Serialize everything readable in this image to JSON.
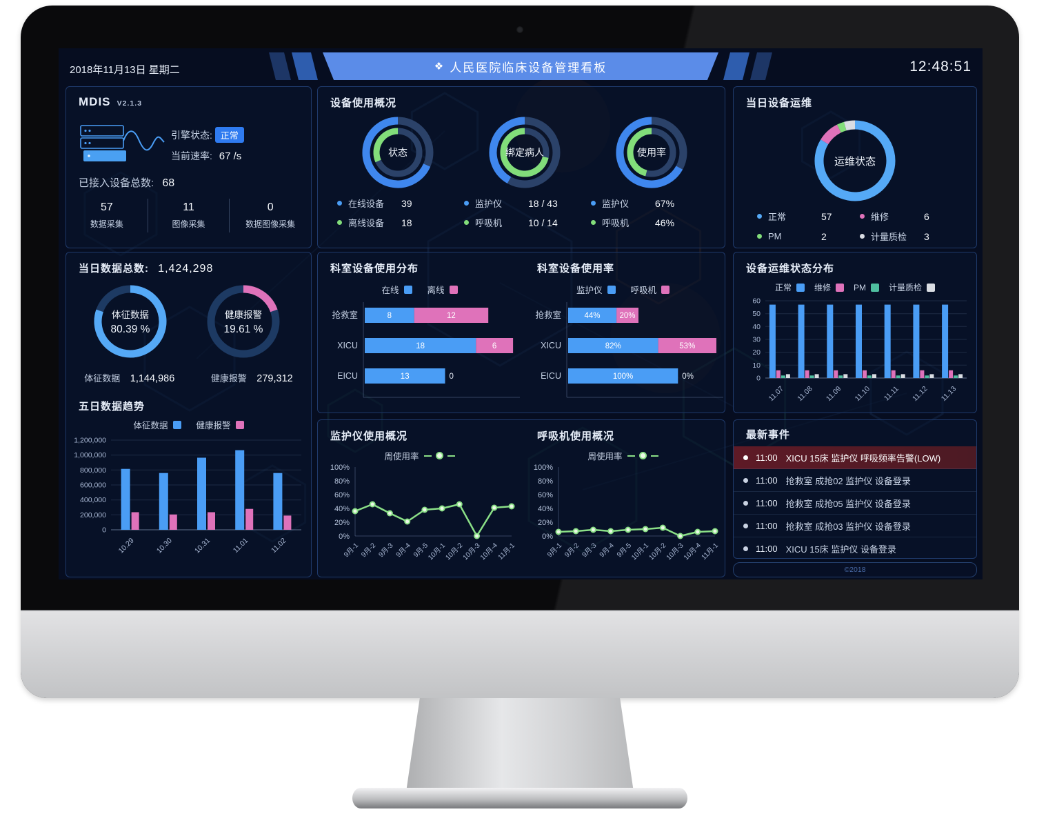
{
  "header": {
    "date": "2018年11月13日 星期二",
    "title": "人民医院临床设备管理看板",
    "time": "12:48:51"
  },
  "colors": {
    "blue": "#4a9df5",
    "donut_blue": "#3f87ee",
    "light_blue": "#55a9f6",
    "green": "#82dd7a",
    "pink": "#df72ba",
    "teal": "#4fbfa0",
    "white_series": "#d9dde3",
    "slate_track": "#2b4269",
    "navy_track": "#1d3a63",
    "banner": "#5b8ce8",
    "badge": "#2f7bf0",
    "alert_bg": "#571c28"
  },
  "mdis": {
    "title": "MDIS",
    "version": "V2.1.3",
    "engine_label": "引擎状态:",
    "engine_status": "正常",
    "rate_label": "当前速率:",
    "rate_value": "67 /s",
    "total_label": "已接入设备总数:",
    "total_value": "68",
    "stats": [
      {
        "value": "57",
        "label": "数据采集"
      },
      {
        "value": "11",
        "label": "图像采集"
      },
      {
        "value": "0",
        "label": "数据图像采集"
      }
    ]
  },
  "overview": {
    "title": "设备使用概况",
    "donuts": [
      {
        "legend": [
          {
            "label": "在线设备",
            "value": "39"
          },
          {
            "label": "离线设备",
            "value": "18"
          }
        ]
      },
      {
        "legend": [
          {
            "label": "监护仪",
            "value": "18 / 43"
          },
          {
            "label": "呼吸机",
            "value": "10 / 14"
          }
        ]
      },
      {
        "legend": [
          {
            "label": "监护仪",
            "value": "67%"
          },
          {
            "label": "呼吸机",
            "value": "46%"
          }
        ]
      }
    ]
  },
  "ops": {
    "title": "当日设备运维"
  },
  "daily": {
    "total_label": "当日数据总数:",
    "total_value": "1,424,298",
    "trend_title": "五日数据趋势",
    "stats": [
      {
        "label": "体征数据",
        "value": "1,144,986"
      },
      {
        "label": "健康报警",
        "value": "279,312"
      }
    ]
  },
  "panels": {
    "dept_dist": "科室设备使用分布",
    "dept_usage": "科室设备使用率",
    "ops_dist": "设备运维状态分布",
    "monitor": "监护仪使用概况",
    "vent": "呼吸机使用概况"
  },
  "events": {
    "title": "最新事件",
    "footer": "©2018",
    "items": [
      {
        "time": "11:00",
        "text": "XICU 15床 监护仪 呼吸频率告警(LOW)",
        "alert": true
      },
      {
        "time": "11:00",
        "text": "抢救室 成抢02 监护仪 设备登录",
        "alert": false
      },
      {
        "time": "11:00",
        "text": "抢救室 成抢05 监护仪 设备登录",
        "alert": false
      },
      {
        "time": "11:00",
        "text": "抢救室 成抢03 监护仪 设备登录",
        "alert": false
      },
      {
        "time": "11:00",
        "text": "XICU 15床 监护仪 设备登录",
        "alert": false
      }
    ]
  },
  "chart_data": [
    {
      "id": "device-status-donut",
      "type": "pie",
      "render": "ring2",
      "center_label": "状态",
      "outer": {
        "label": "在线设备",
        "value": 39,
        "total": 57,
        "color": "#3f87ee"
      },
      "inner": {
        "label": "离线设备",
        "value": 18,
        "total": 57,
        "color": "#82dd7a"
      }
    },
    {
      "id": "bound-patient-donut",
      "type": "pie",
      "render": "ring2",
      "center_label": "绑定病人",
      "outer": {
        "label": "监护仪",
        "value": 18,
        "total": 43,
        "color": "#3f87ee"
      },
      "inner": {
        "label": "呼吸机",
        "value": 10,
        "total": 14,
        "color": "#82dd7a"
      }
    },
    {
      "id": "usage-rate-donut",
      "type": "pie",
      "render": "ring2",
      "center_label": "使用率",
      "outer": {
        "label": "监护仪",
        "pct": 67,
        "color": "#3f87ee"
      },
      "inner": {
        "label": "呼吸机",
        "pct": 46,
        "color": "#82dd7a"
      }
    },
    {
      "id": "ops-status-donut",
      "type": "pie",
      "render": "donut",
      "center_label": "运维状态",
      "slices": [
        {
          "label": "正常",
          "value": 57,
          "color": "#55a9f6"
        },
        {
          "label": "维修",
          "value": 6,
          "color": "#df72ba"
        },
        {
          "label": "PM",
          "value": 2,
          "color": "#82dd7a"
        },
        {
          "label": "计量质检",
          "value": 3,
          "color": "#d9dde3"
        }
      ]
    },
    {
      "id": "vital-data-donut",
      "type": "pie",
      "render": "pct",
      "center_label": "体征数据",
      "pct": 80.39,
      "pct_label": "80.39 %",
      "color": "#55a9f6"
    },
    {
      "id": "health-alarm-donut",
      "type": "pie",
      "render": "pct",
      "center_label": "健康报警",
      "pct": 19.61,
      "pct_label": "19.61 %",
      "color": "#df72ba"
    },
    {
      "id": "five-day-trend",
      "type": "bar",
      "render": "vbar",
      "categories": [
        "10.29",
        "10.30",
        "10.31",
        "11.01",
        "11.02"
      ],
      "series": [
        {
          "name": "体征数据",
          "color": "#4a9df5",
          "values": [
            815000,
            760000,
            965000,
            1065000,
            760000
          ]
        },
        {
          "name": "健康报警",
          "color": "#df72ba",
          "values": [
            235000,
            205000,
            235000,
            280000,
            190000
          ]
        }
      ],
      "ylim": [
        0,
        1200000
      ],
      "ystep": 200000
    },
    {
      "id": "dept-device-distribution",
      "type": "bar",
      "render": "hbar",
      "orientation": "horizontal",
      "categories": [
        "抢救室",
        "XICU",
        "EICU"
      ],
      "series": [
        {
          "name": "在线",
          "color": "#4a9df5",
          "values": [
            8,
            18,
            13
          ]
        },
        {
          "name": "离线",
          "color": "#df72ba",
          "values": [
            12,
            6,
            0
          ]
        }
      ],
      "xmax": 24,
      "unit": ""
    },
    {
      "id": "dept-usage-rate",
      "type": "bar",
      "render": "hbar",
      "orientation": "horizontal",
      "categories": [
        "抢救室",
        "XICU",
        "EICU"
      ],
      "series": [
        {
          "name": "监护仪",
          "color": "#4a9df5",
          "values": [
            44,
            82,
            100
          ]
        },
        {
          "name": "呼吸机",
          "color": "#df72ba",
          "values": [
            20,
            53,
            0
          ]
        }
      ],
      "xmax": 135,
      "unit": "%"
    },
    {
      "id": "ops-status-distribution",
      "type": "bar",
      "render": "vbar",
      "categories": [
        "11.07",
        "11.08",
        "11.09",
        "11.10",
        "11.11",
        "11.12",
        "11.13"
      ],
      "series": [
        {
          "name": "正常",
          "color": "#4a9df5",
          "values": [
            57,
            57,
            57,
            57,
            57,
            57,
            57
          ]
        },
        {
          "name": "维修",
          "color": "#df72ba",
          "values": [
            6,
            6,
            6,
            6,
            6,
            6,
            6
          ]
        },
        {
          "name": "PM",
          "color": "#4fbfa0",
          "values": [
            2,
            2,
            2,
            2,
            2,
            2,
            2
          ]
        },
        {
          "name": "计量质检",
          "color": "#d9dde3",
          "values": [
            3,
            3,
            3,
            3,
            3,
            3,
            3
          ]
        }
      ],
      "ylim": [
        0,
        60
      ],
      "ystep": 10
    },
    {
      "id": "monitor-weekly-usage",
      "type": "line",
      "render": "line",
      "categories": [
        "9月-1",
        "9月-2",
        "9月-3",
        "9月-4",
        "9月-5",
        "10月-1",
        "10月-2",
        "10月-3",
        "10月-4",
        "11月-1"
      ],
      "series": [
        {
          "name": "周使用率",
          "color": "#8be087",
          "values": [
            36,
            46,
            33,
            21,
            38,
            40,
            46,
            0,
            41,
            43
          ]
        }
      ],
      "ylim": [
        0,
        100
      ],
      "ystep": 20,
      "unit": "%"
    },
    {
      "id": "vent-weekly-usage",
      "type": "line",
      "render": "line",
      "categories": [
        "9月-1",
        "9月-2",
        "9月-3",
        "9月-4",
        "9月-5",
        "10月-1",
        "10月-2",
        "10月-3",
        "10月-4",
        "11月-1"
      ],
      "series": [
        {
          "name": "周使用率",
          "color": "#8be087",
          "values": [
            6,
            7,
            9,
            7,
            9,
            10,
            12,
            0,
            6,
            7
          ]
        }
      ],
      "ylim": [
        0,
        100
      ],
      "ystep": 20,
      "unit": "%"
    }
  ]
}
